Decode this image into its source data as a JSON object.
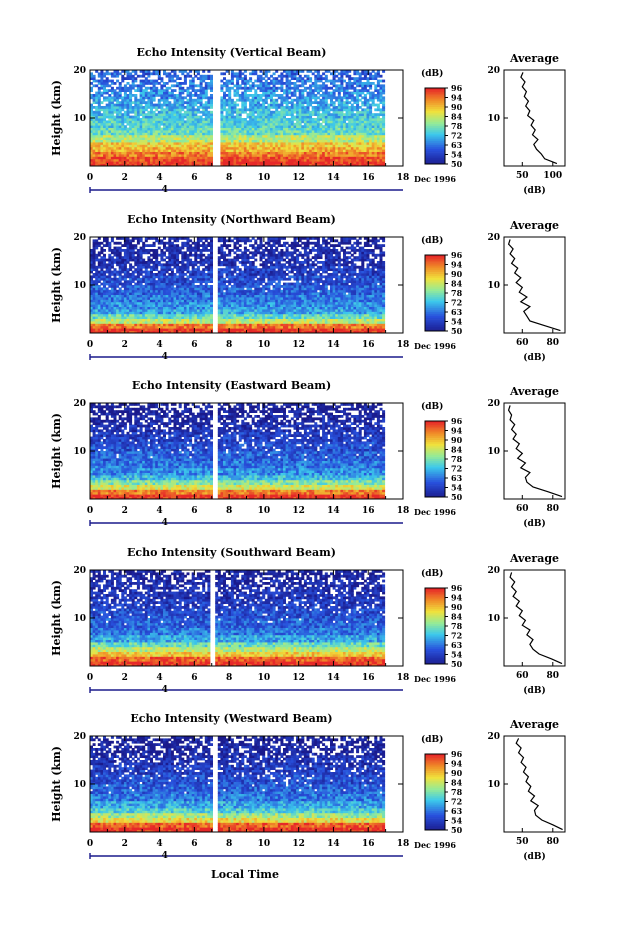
{
  "figure": {
    "xlabel_bottom": "Local Time",
    "date_label": "Dec 1996",
    "ylabel": "Height (km)",
    "colorbar_unit": "(dB)",
    "colorbar_ticks": [
      "50",
      "54",
      "63",
      "72",
      "78",
      "84",
      "90",
      "94",
      "96"
    ],
    "avg_title": "Average",
    "avg_xlabel": "(dB)",
    "colors": {
      "low": "#1a1a8c",
      "mid_blue": "#2a6be0",
      "cyan": "#3fd0e8",
      "yellow": "#f0e040",
      "orange": "#f08a30",
      "red": "#e62a2a",
      "gap": "#ffffff"
    }
  },
  "chart_data": [
    {
      "type": "heatmap",
      "title": "Echo Intensity (Vertical Beam)",
      "xlabel": "",
      "ylabel": "Height (km)",
      "x_ticks": [
        0,
        2,
        4,
        6,
        8,
        10,
        12,
        14,
        16,
        18
      ],
      "x_tick_labels": [
        "0",
        "2",
        "4",
        "6",
        "8",
        "10",
        "12",
        "14",
        "16",
        "18"
      ],
      "xlim": [
        0,
        18
      ],
      "ylim": [
        0,
        20
      ],
      "y_ticks": [
        10,
        20
      ],
      "day_marker": "4",
      "date_label": "Dec 1996",
      "colorbar": {
        "unit": "(dB)",
        "ticks": [
          "50",
          "54",
          "63",
          "72",
          "78",
          "84",
          "90",
          "94",
          "96"
        ]
      },
      "data_gap_hours": [
        7.0,
        7.4
      ],
      "data_end_hour": 16.9,
      "profile_rows_km": [
        {
          "h": 0.5,
          "db": 96
        },
        {
          "h": 1.5,
          "db": 94
        },
        {
          "h": 2.5,
          "db": 90
        },
        {
          "h": 3.5,
          "db": 86
        },
        {
          "h": 4.5,
          "db": 84
        },
        {
          "h": 5.5,
          "db": 78
        },
        {
          "h": 7,
          "db": 72
        },
        {
          "h": 9,
          "db": 70
        },
        {
          "h": 11,
          "db": 68
        },
        {
          "h": 13,
          "db": 66
        },
        {
          "h": 15,
          "db": 64
        },
        {
          "h": 17,
          "db": 62
        },
        {
          "h": 19,
          "db": 60
        }
      ],
      "average": {
        "title": "Average",
        "xlabel": "(dB)",
        "x_tick_labels": [
          "50",
          "100"
        ],
        "xlim": [
          20,
          110
        ],
        "ylim": [
          0,
          20
        ],
        "y_ticks": [
          10,
          20
        ],
        "profile": [
          [
            98,
            0.5
          ],
          [
            80,
            1.5
          ],
          [
            75,
            2.5
          ],
          [
            68,
            3.5
          ],
          [
            64,
            4.5
          ],
          [
            70,
            5.5
          ],
          [
            62,
            6.5
          ],
          [
            66,
            7.5
          ],
          [
            60,
            8.5
          ],
          [
            64,
            9.5
          ],
          [
            55,
            10.5
          ],
          [
            58,
            11.5
          ],
          [
            52,
            12.5
          ],
          [
            56,
            13.5
          ],
          [
            50,
            14.5
          ],
          [
            53,
            15.5
          ],
          [
            47,
            16.5
          ],
          [
            51,
            17.5
          ],
          [
            45,
            18.5
          ],
          [
            48,
            19.5
          ]
        ]
      }
    },
    {
      "type": "heatmap",
      "title": "Echo Intensity (Northward Beam)",
      "xlabel": "",
      "ylabel": "Height (km)",
      "x_ticks": [
        0,
        2,
        4,
        6,
        8,
        10,
        12,
        14,
        16,
        18
      ],
      "x_tick_labels": [
        "0",
        "2",
        "4",
        "6",
        "8",
        "10",
        "12",
        "14",
        "16",
        "18"
      ],
      "xlim": [
        0,
        18
      ],
      "ylim": [
        0,
        20
      ],
      "y_ticks": [
        10,
        20
      ],
      "day_marker": "4",
      "date_label": "Dec 1996",
      "colorbar": {
        "unit": "(dB)",
        "ticks": [
          "50",
          "54",
          "63",
          "72",
          "78",
          "84",
          "90",
          "94",
          "96"
        ]
      },
      "data_gap_hours": [
        7.0,
        7.3
      ],
      "data_end_hour": 16.9,
      "profile_rows_km": [
        {
          "h": 0.5,
          "db": 96
        },
        {
          "h": 1.5,
          "db": 90
        },
        {
          "h": 2.5,
          "db": 78
        },
        {
          "h": 3.5,
          "db": 72
        },
        {
          "h": 4.5,
          "db": 66
        },
        {
          "h": 5.5,
          "db": 64
        },
        {
          "h": 7,
          "db": 62
        },
        {
          "h": 9,
          "db": 60
        },
        {
          "h": 11,
          "db": 58
        },
        {
          "h": 13,
          "db": 56
        },
        {
          "h": 15,
          "db": 54
        },
        {
          "h": 17,
          "db": 53
        },
        {
          "h": 19,
          "db": 52
        }
      ],
      "average": {
        "title": "Average",
        "xlabel": "(dB)",
        "x_tick_labels": [
          "60",
          "80"
        ],
        "xlim": [
          55,
          95
        ],
        "ylim": [
          0,
          20
        ],
        "y_ticks": [
          10,
          20
        ],
        "profile": [
          [
            92,
            0.5
          ],
          [
            82,
            1.5
          ],
          [
            72,
            2.5
          ],
          [
            70,
            3.5
          ],
          [
            68,
            4.5
          ],
          [
            72,
            5.5
          ],
          [
            66,
            6.5
          ],
          [
            70,
            7.5
          ],
          [
            65,
            8.5
          ],
          [
            67,
            9.5
          ],
          [
            63,
            10.5
          ],
          [
            66,
            11.5
          ],
          [
            62,
            12.5
          ],
          [
            64,
            13.5
          ],
          [
            60,
            14.5
          ],
          [
            62,
            15.5
          ],
          [
            59,
            16.5
          ],
          [
            61,
            17.5
          ],
          [
            58,
            18.5
          ],
          [
            59,
            19.5
          ]
        ]
      }
    },
    {
      "type": "heatmap",
      "title": "Echo Intensity (Eastward Beam)",
      "xlabel": "",
      "ylabel": "Height (km)",
      "x_ticks": [
        0,
        2,
        4,
        6,
        8,
        10,
        12,
        14,
        16,
        18
      ],
      "x_tick_labels": [
        "0",
        "2",
        "4",
        "6",
        "8",
        "10",
        "12",
        "14",
        "16",
        "18"
      ],
      "xlim": [
        0,
        18
      ],
      "ylim": [
        0,
        20
      ],
      "y_ticks": [
        10,
        20
      ],
      "day_marker": "4",
      "date_label": "Dec 1996",
      "colorbar": {
        "unit": "(dB)",
        "ticks": [
          "50",
          "54",
          "63",
          "72",
          "78",
          "84",
          "90",
          "94",
          "96"
        ]
      },
      "data_gap_hours": [
        7.0,
        7.3
      ],
      "data_end_hour": 16.9,
      "profile_rows_km": [
        {
          "h": 0.5,
          "db": 96
        },
        {
          "h": 1.5,
          "db": 90
        },
        {
          "h": 2.5,
          "db": 80
        },
        {
          "h": 3.5,
          "db": 74
        },
        {
          "h": 4.5,
          "db": 68
        },
        {
          "h": 5.5,
          "db": 64
        },
        {
          "h": 7,
          "db": 62
        },
        {
          "h": 9,
          "db": 60
        },
        {
          "h": 11,
          "db": 58
        },
        {
          "h": 13,
          "db": 56
        },
        {
          "h": 15,
          "db": 54
        },
        {
          "h": 17,
          "db": 52
        },
        {
          "h": 19,
          "db": 51
        }
      ],
      "average": {
        "title": "Average",
        "xlabel": "(dB)",
        "x_tick_labels": [
          "60",
          "80"
        ],
        "xlim": [
          55,
          95
        ],
        "ylim": [
          0,
          20
        ],
        "y_ticks": [
          10,
          20
        ],
        "profile": [
          [
            93,
            0.5
          ],
          [
            84,
            1.5
          ],
          [
            74,
            2.5
          ],
          [
            70,
            3.5
          ],
          [
            69,
            4.5
          ],
          [
            72,
            5.5
          ],
          [
            66,
            6.5
          ],
          [
            69,
            7.5
          ],
          [
            64,
            8.5
          ],
          [
            67,
            9.5
          ],
          [
            63,
            10.5
          ],
          [
            65,
            11.5
          ],
          [
            61,
            12.5
          ],
          [
            63,
            13.5
          ],
          [
            60,
            14.5
          ],
          [
            62,
            15.5
          ],
          [
            59,
            16.5
          ],
          [
            60,
            17.5
          ],
          [
            58,
            18.5
          ],
          [
            59,
            19.5
          ]
        ]
      }
    },
    {
      "type": "heatmap",
      "title": "Echo Intensity (Southward Beam)",
      "xlabel": "",
      "ylabel": "Height (km)",
      "x_ticks": [
        0,
        2,
        4,
        6,
        8,
        10,
        12,
        14,
        16,
        18
      ],
      "x_tick_labels": [
        "0",
        "2",
        "4",
        "6",
        "8",
        "10",
        "12",
        "14",
        "16",
        "18"
      ],
      "xlim": [
        0,
        18
      ],
      "ylim": [
        0,
        20
      ],
      "y_ticks": [
        10,
        20
      ],
      "day_marker": "4",
      "date_label": "Dec 1996",
      "colorbar": {
        "unit": "(dB)",
        "ticks": [
          "50",
          "54",
          "63",
          "72",
          "78",
          "84",
          "90",
          "94",
          "96"
        ]
      },
      "data_gap_hours": [
        6.9,
        7.2
      ],
      "data_end_hour": 16.9,
      "profile_rows_km": [
        {
          "h": 0.5,
          "db": 96
        },
        {
          "h": 1.5,
          "db": 92
        },
        {
          "h": 2.5,
          "db": 84
        },
        {
          "h": 3.5,
          "db": 78
        },
        {
          "h": 4.5,
          "db": 72
        },
        {
          "h": 5.5,
          "db": 66
        },
        {
          "h": 7,
          "db": 62
        },
        {
          "h": 9,
          "db": 60
        },
        {
          "h": 11,
          "db": 58
        },
        {
          "h": 13,
          "db": 56
        },
        {
          "h": 15,
          "db": 54
        },
        {
          "h": 17,
          "db": 53
        },
        {
          "h": 19,
          "db": 52
        }
      ],
      "average": {
        "title": "Average",
        "xlabel": "(dB)",
        "x_tick_labels": [
          "60",
          "80"
        ],
        "xlim": [
          55,
          95
        ],
        "ylim": [
          0,
          20
        ],
        "y_ticks": [
          10,
          20
        ],
        "profile": [
          [
            93,
            0.5
          ],
          [
            86,
            1.5
          ],
          [
            78,
            2.5
          ],
          [
            74,
            3.5
          ],
          [
            72,
            4.5
          ],
          [
            74,
            5.5
          ],
          [
            70,
            6.5
          ],
          [
            72,
            7.5
          ],
          [
            67,
            8.5
          ],
          [
            69,
            9.5
          ],
          [
            65,
            10.5
          ],
          [
            67,
            11.5
          ],
          [
            63,
            12.5
          ],
          [
            65,
            13.5
          ],
          [
            61,
            14.5
          ],
          [
            63,
            15.5
          ],
          [
            60,
            16.5
          ],
          [
            62,
            17.5
          ],
          [
            59,
            18.5
          ],
          [
            60,
            19.5
          ]
        ]
      }
    },
    {
      "type": "heatmap",
      "title": "Echo Intensity (Westward Beam)",
      "xlabel": "Local Time",
      "ylabel": "Height (km)",
      "x_ticks": [
        0,
        2,
        4,
        6,
        8,
        10,
        12,
        14,
        16,
        18
      ],
      "x_tick_labels": [
        "0",
        "2",
        "4",
        "6",
        "8",
        "10",
        "12",
        "14",
        "16",
        "18"
      ],
      "xlim": [
        0,
        18
      ],
      "ylim": [
        0,
        20
      ],
      "y_ticks": [
        10,
        20
      ],
      "day_marker": "4",
      "date_label": "Dec 1996",
      "colorbar": {
        "unit": "(dB)",
        "ticks": [
          "50",
          "54",
          "63",
          "72",
          "78",
          "84",
          "90",
          "94",
          "96"
        ]
      },
      "data_gap_hours": [
        7.0,
        7.3
      ],
      "data_end_hour": 16.9,
      "profile_rows_km": [
        {
          "h": 0.5,
          "db": 96
        },
        {
          "h": 1.5,
          "db": 92
        },
        {
          "h": 2.5,
          "db": 82
        },
        {
          "h": 3.5,
          "db": 76
        },
        {
          "h": 4.5,
          "db": 70
        },
        {
          "h": 5.5,
          "db": 66
        },
        {
          "h": 7,
          "db": 62
        },
        {
          "h": 9,
          "db": 60
        },
        {
          "h": 11,
          "db": 58
        },
        {
          "h": 13,
          "db": 56
        },
        {
          "h": 15,
          "db": 54
        },
        {
          "h": 17,
          "db": 52
        },
        {
          "h": 19,
          "db": 51
        }
      ],
      "average": {
        "title": "Average",
        "xlabel": "(dB)",
        "x_tick_labels": [
          "50",
          "80"
        ],
        "xlim": [
          45,
          95
        ],
        "ylim": [
          0,
          20
        ],
        "y_ticks": [
          10,
          20
        ],
        "profile": [
          [
            93,
            0.5
          ],
          [
            85,
            1.5
          ],
          [
            76,
            2.5
          ],
          [
            71,
            3.5
          ],
          [
            70,
            4.5
          ],
          [
            73,
            5.5
          ],
          [
            67,
            6.5
          ],
          [
            70,
            7.5
          ],
          [
            65,
            8.5
          ],
          [
            67,
            9.5
          ],
          [
            63,
            10.5
          ],
          [
            65,
            11.5
          ],
          [
            61,
            12.5
          ],
          [
            63,
            13.5
          ],
          [
            59,
            14.5
          ],
          [
            61,
            15.5
          ],
          [
            57,
            16.5
          ],
          [
            59,
            17.5
          ],
          [
            55,
            18.5
          ],
          [
            57,
            19.5
          ]
        ]
      }
    }
  ]
}
